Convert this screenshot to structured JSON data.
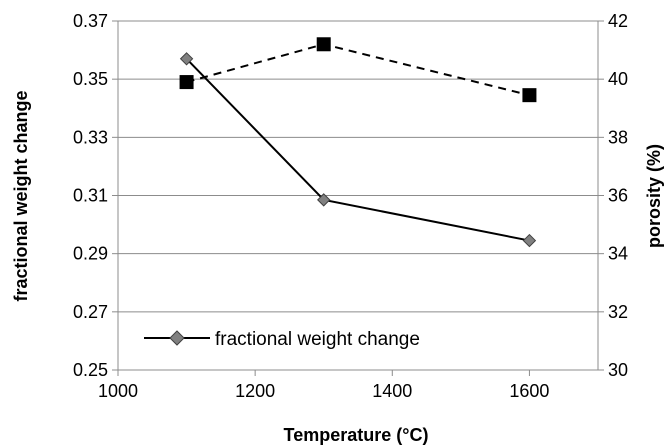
{
  "chart_data": {
    "type": "line",
    "xlabel": "Temperature (°C)",
    "ylabel": "fractional weight change",
    "y2label": "porosity (%)",
    "xlim": [
      1000,
      1700
    ],
    "ylim": [
      0.25,
      0.37
    ],
    "y2lim": [
      30,
      42
    ],
    "xticks": [
      1000,
      1200,
      1400,
      1600
    ],
    "yticks": [
      "0.25",
      "0.27",
      "0.29",
      "0.31",
      "0.33",
      "0.35",
      "0.37"
    ],
    "y2ticks": [
      "30",
      "32",
      "34",
      "36",
      "38",
      "40",
      "42"
    ],
    "grid": "horizontal",
    "legend_position": "bottom-left",
    "series": [
      {
        "name": "fractional weight change",
        "axis": "left",
        "marker": "diamond",
        "line": "solid",
        "color": "#000000",
        "marker_color": "#808080",
        "x": [
          1100,
          1300,
          1600
        ],
        "y": [
          0.357,
          0.3085,
          0.2945
        ]
      },
      {
        "axis": "right",
        "marker": "square",
        "line": "dashed",
        "color": "#000000",
        "marker_color": "#000000",
        "x": [
          1100,
          1300,
          1600
        ],
        "y": [
          39.9,
          41.2,
          39.45
        ]
      }
    ]
  }
}
